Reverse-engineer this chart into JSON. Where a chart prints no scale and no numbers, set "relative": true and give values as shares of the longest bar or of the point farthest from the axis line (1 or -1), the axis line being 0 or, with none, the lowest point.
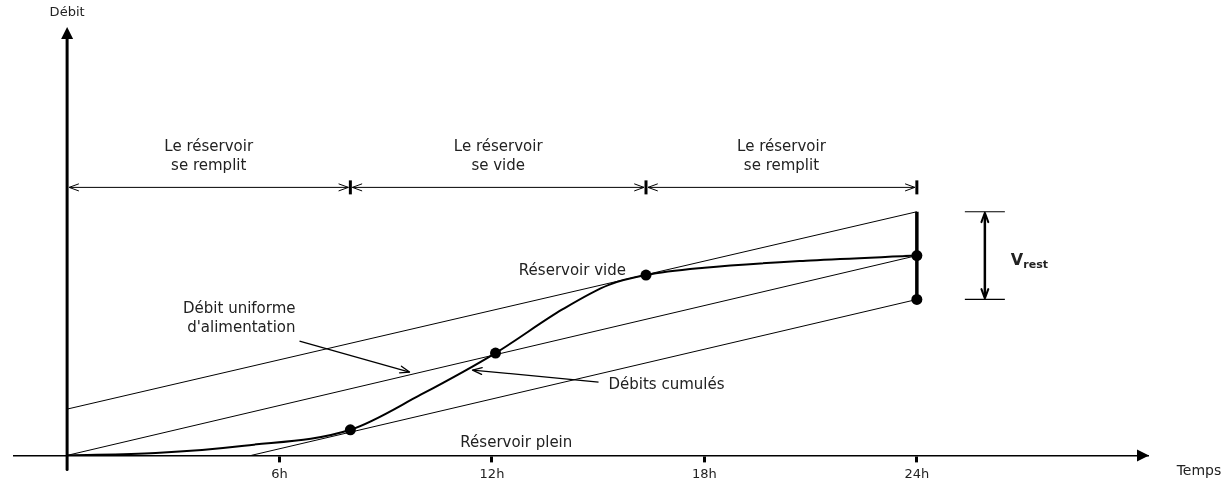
{
  "chart_data": {
    "type": "line",
    "relative": true,
    "xlabel": "Temps",
    "xlim": [
      -1.5,
      30.5
    ],
    "xticks": [
      {
        "value": 6,
        "label": "6h"
      },
      {
        "value": 12,
        "label": "12h"
      },
      {
        "value": 18,
        "label": "18h"
      },
      {
        "value": 24,
        "label": "24h"
      }
    ],
    "series": [
      {
        "color": "#000000",
        "x": [
          0,
          24
        ],
        "values": [
          0.19,
          1
        ]
      },
      {
        "color": "#000000",
        "x": [
          0,
          24
        ],
        "values": [
          0,
          0.82
        ]
      },
      {
        "color": "#000000",
        "x": [
          5.2,
          24
        ],
        "values": [
          0,
          0.64
        ]
      },
      {
        "color": "#000000",
        "x": [
          0,
          2.5,
          5,
          8,
          10,
          12.1,
          14,
          15.3,
          16.35,
          18,
          21,
          24
        ],
        "values": [
          0,
          0.01,
          0.04,
          0.105,
          0.25,
          0.42,
          0.6,
          0.7,
          0.74,
          0.77,
          0.8,
          0.82
        ]
      },
      {
        "type": "scatter",
        "marker": "circle",
        "color": "#000000",
        "x": [
          8,
          12.1,
          16.35,
          24,
          24
        ],
        "values": [
          0.105,
          0.42,
          0.74,
          0.82,
          0.64
        ]
      },
      {
        "color": "#000000",
        "x": [
          24,
          24
        ],
        "values": [
          0.64,
          1
        ]
      }
    ],
    "annotations": [
      "Débit",
      "Le réservoir\nse remplit",
      "Le réservoir\nse vide",
      "Le réservoir\nse remplit",
      {
        "text": "Réservoir vide",
        "x": 16.35,
        "y": 0.74
      },
      "Réservoir plein",
      "Débits cumulés",
      "Débit uniforme\nd'alimentation",
      "V$_{rest}$"
    ],
    "legend": false,
    "grid": false,
    "marker": "none",
    "line_style": "solid"
  }
}
